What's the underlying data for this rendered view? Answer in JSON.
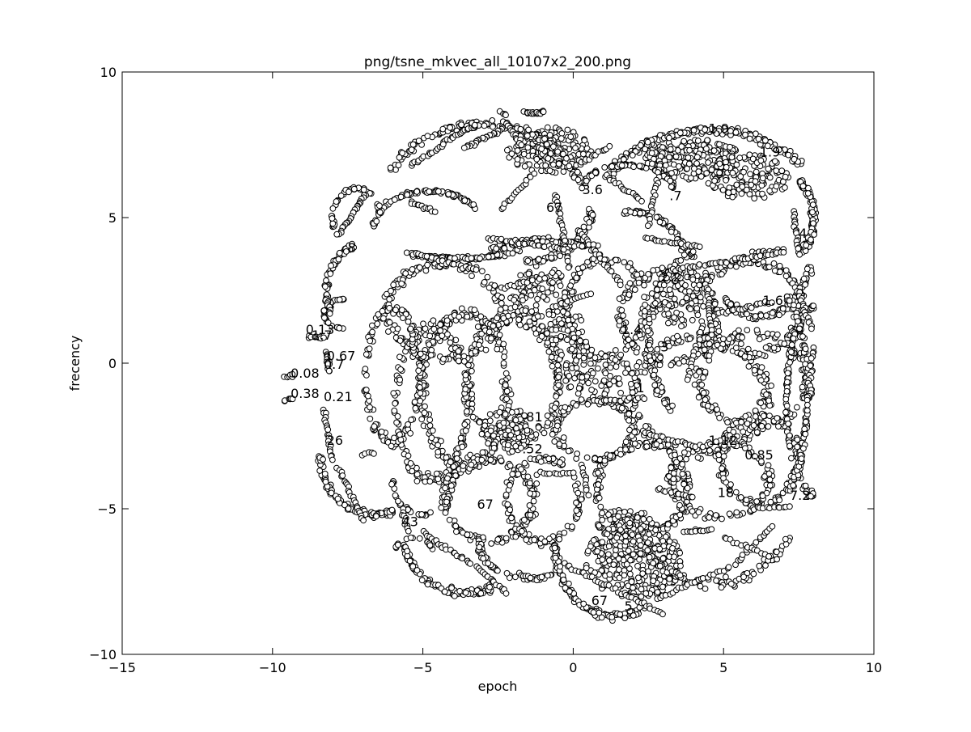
{
  "chart_data": {
    "type": "scatter",
    "title": "png/tsne_mkvec_all_10107x2_200.png",
    "xlabel": "epoch",
    "ylabel": "frecency",
    "xlim": [
      -15,
      10
    ],
    "ylim": [
      -10,
      10
    ],
    "grid": false,
    "legend": "none",
    "marker": {
      "shape": "circle",
      "fill": "#ffffff",
      "edge": "#000000"
    },
    "x_ticks": [
      -15,
      -10,
      -5,
      0,
      5,
      10
    ],
    "y_ticks": [
      -10,
      -5,
      0,
      5,
      10
    ],
    "x_tick_labels": [
      "−15",
      "−10",
      "−5",
      "0",
      "5",
      "10"
    ],
    "y_tick_labels": [
      "−10",
      "−5",
      "0",
      "5",
      "10"
    ],
    "annotations": [
      {
        "text": "1.9",
        "x": 4.5,
        "y": 7.9
      },
      {
        "text": "1.9",
        "x": 6.2,
        "y": 7.1
      },
      {
        "text": "3.6",
        "x": 0.3,
        "y": 5.8
      },
      {
        "text": ".7",
        "x": 3.2,
        "y": 5.6
      },
      {
        "text": "67",
        "x": -0.9,
        "y": 5.2
      },
      {
        "text": "4",
        "x": 7.5,
        "y": 4.3
      },
      {
        "text": "8",
        "x": -7.5,
        "y": 3.8
      },
      {
        "text": "2.2",
        "x": 2.9,
        "y": 2.8
      },
      {
        "text": "1.6",
        "x": 6.3,
        "y": 2.0
      },
      {
        "text": "1.4",
        "x": 1.6,
        "y": 1.0
      },
      {
        "text": "3",
        "x": 2.9,
        "y": 0.4
      },
      {
        "text": "0.13",
        "x": -8.9,
        "y": 1.0
      },
      {
        "text": "1.7",
        "x": -8.7,
        "y": 0.8
      },
      {
        "text": "0.67",
        "x": -8.2,
        "y": 0.1
      },
      {
        "text": "0.7",
        "x": -8.3,
        "y": -0.2
      },
      {
        "text": "0.08",
        "x": -9.4,
        "y": -0.5
      },
      {
        "text": "0.38",
        "x": -9.4,
        "y": -1.2
      },
      {
        "text": "0.21",
        "x": -8.3,
        "y": -1.3
      },
      {
        "text": "1",
        "x": 2.1,
        "y": -1.0
      },
      {
        "text": ".81",
        "x": -1.7,
        "y": -2.0
      },
      {
        "text": "1.12",
        "x": 4.5,
        "y": -2.8
      },
      {
        "text": "0.85",
        "x": 5.7,
        "y": -3.3
      },
      {
        "text": ".52",
        "x": -1.7,
        "y": -3.1
      },
      {
        "text": "18",
        "x": 4.8,
        "y": -4.6
      },
      {
        "text": "7.2",
        "x": 7.2,
        "y": -4.7
      },
      {
        "text": "26",
        "x": -8.2,
        "y": -2.8
      },
      {
        "text": "67",
        "x": -3.2,
        "y": -5.0
      },
      {
        "text": "43",
        "x": -5.7,
        "y": -5.6
      },
      {
        "text": "67",
        "x": 0.6,
        "y": -8.3
      },
      {
        "text": "5",
        "x": 1.7,
        "y": -8.5
      }
    ],
    "clusters": [
      {
        "shape": "ring",
        "cx": -3.6,
        "cy": -0.9,
        "rx": 1.4,
        "ry": 2.6,
        "n": 220
      },
      {
        "shape": "ring",
        "cx": -2.0,
        "cy": -0.6,
        "rx": 1.5,
        "ry": 2.2,
        "n": 200
      },
      {
        "shape": "ring",
        "cx": -4.3,
        "cy": 1.8,
        "rx": 1.9,
        "ry": 1.6,
        "n": 170
      },
      {
        "shape": "ring",
        "cx": -4.7,
        "cy": -1.4,
        "rx": 1.2,
        "ry": 2.6,
        "n": 170
      },
      {
        "shape": "ring",
        "cx": -2.8,
        "cy": -4.7,
        "rx": 1.5,
        "ry": 1.4,
        "n": 150
      },
      {
        "shape": "ring",
        "cx": -1.0,
        "cy": -4.7,
        "rx": 1.2,
        "ry": 1.4,
        "n": 120
      },
      {
        "shape": "ring",
        "cx": 4.2,
        "cy": -1.1,
        "rx": 2.2,
        "ry": 2.0,
        "n": 210
      },
      {
        "shape": "ring",
        "cx": 6.2,
        "cy": -3.3,
        "rx": 1.3,
        "ry": 1.5,
        "n": 140
      },
      {
        "shape": "ring",
        "cx": 4.9,
        "cy": -4.0,
        "rx": 1.6,
        "ry": 1.3,
        "n": 130
      },
      {
        "shape": "ring",
        "cx": 5.8,
        "cy": 1.9,
        "rx": 1.8,
        "ry": 1.6,
        "n": 170
      },
      {
        "shape": "ring",
        "cx": 6.0,
        "cy": -0.6,
        "rx": 1.8,
        "ry": 1.6,
        "n": 150
      },
      {
        "shape": "ring",
        "cx": 3.2,
        "cy": 1.6,
        "rx": 1.6,
        "ry": 1.6,
        "n": 160
      },
      {
        "shape": "ring",
        "cx": 1.1,
        "cy": 1.9,
        "rx": 1.3,
        "ry": 1.7,
        "n": 150
      },
      {
        "shape": "ring",
        "cx": 0.7,
        "cy": -2.3,
        "rx": 1.3,
        "ry": 1.0,
        "n": 110
      },
      {
        "shape": "ring",
        "cx": 2.3,
        "cy": -4.3,
        "rx": 1.5,
        "ry": 1.5,
        "n": 150
      },
      {
        "shape": "ring",
        "cx": -6.0,
        "cy": -0.4,
        "rx": 0.9,
        "ry": 2.3,
        "n": 140
      },
      {
        "shape": "blob",
        "cx": 2.0,
        "cy": -6.8,
        "rx": 1.6,
        "ry": 1.3,
        "n": 300
      },
      {
        "shape": "blob",
        "cx": 4.0,
        "cy": 7.0,
        "rx": 1.6,
        "ry": 0.7,
        "n": 190
      },
      {
        "shape": "blob",
        "cx": 5.8,
        "cy": 6.4,
        "rx": 1.4,
        "ry": 0.8,
        "n": 150
      },
      {
        "shape": "blob",
        "cx": -0.8,
        "cy": 7.3,
        "rx": 1.4,
        "ry": 0.8,
        "n": 170
      },
      {
        "shape": "blob",
        "cx": -1.1,
        "cy": 2.1,
        "rx": 1.0,
        "ry": 1.3,
        "n": 130
      },
      {
        "shape": "blob",
        "cx": -0.2,
        "cy": 0.8,
        "rx": 0.7,
        "ry": 1.0,
        "n": 70
      },
      {
        "shape": "blob",
        "cx": 3.5,
        "cy": 2.2,
        "rx": 0.9,
        "ry": 1.0,
        "n": 90
      },
      {
        "shape": "blob",
        "cx": -2.2,
        "cy": -2.3,
        "rx": 0.8,
        "ry": 0.8,
        "n": 80
      },
      {
        "shape": "blob",
        "cx": 0.9,
        "cy": -0.6,
        "rx": 1.2,
        "ry": 0.9,
        "n": 90
      },
      {
        "shape": "blob",
        "cx": 1.8,
        "cy": -5.6,
        "rx": 1.0,
        "ry": 0.6,
        "n": 80
      },
      {
        "shape": "arc",
        "cx": 1.4,
        "cy": -6.2,
        "rx": 2.0,
        "ry": 2.5,
        "a0": 180,
        "a1": 300,
        "n": 130
      },
      {
        "shape": "arc",
        "cx": 4.6,
        "cy": -4.2,
        "rx": 3.0,
        "ry": 3.4,
        "a0": 200,
        "a1": 330,
        "n": 120
      },
      {
        "shape": "arc",
        "cx": 6.0,
        "cy": 5.0,
        "rx": 2.0,
        "ry": 2.0,
        "a0": 320,
        "a1": 400,
        "n": 100
      },
      {
        "shape": "arc",
        "cx": 4.5,
        "cy": 5.5,
        "rx": 3.5,
        "ry": 2.5,
        "a0": 30,
        "a1": 160,
        "n": 180
      },
      {
        "shape": "arc",
        "cx": 6.2,
        "cy": 4.2,
        "rx": 1.8,
        "ry": 2.6,
        "a0": 230,
        "a1": 340,
        "n": 90
      },
      {
        "shape": "arc",
        "cx": 8.0,
        "cy": -1.3,
        "rx": 0.9,
        "ry": 3.2,
        "a0": 90,
        "a1": 270,
        "n": 110
      },
      {
        "shape": "arc",
        "cx": 6.4,
        "cy": -1.0,
        "rx": 1.4,
        "ry": 3.8,
        "a0": 300,
        "a1": 420,
        "n": 130
      },
      {
        "shape": "arc",
        "cx": 4.8,
        "cy": 0.8,
        "rx": 2.3,
        "ry": 3.2,
        "a0": 110,
        "a1": 230,
        "n": 90
      },
      {
        "shape": "arc",
        "cx": 1.8,
        "cy": 6.0,
        "rx": 1.5,
        "ry": 0.8,
        "a0": 0,
        "a1": 180,
        "n": 80
      },
      {
        "shape": "arc",
        "cx": -3.0,
        "cy": 5.8,
        "rx": 3.2,
        "ry": 2.4,
        "a0": 10,
        "a1": 160,
        "n": 170
      },
      {
        "shape": "arc",
        "cx": -4.8,
        "cy": 4.7,
        "rx": 1.8,
        "ry": 1.2,
        "a0": 30,
        "a1": 180,
        "n": 90
      },
      {
        "shape": "arc",
        "cx": -1.6,
        "cy": 5.3,
        "rx": 2.2,
        "ry": 1.8,
        "a0": 270,
        "a1": 360,
        "n": 80
      },
      {
        "shape": "arc",
        "cx": -3.8,
        "cy": 4.8,
        "rx": 3.2,
        "ry": 1.2,
        "a0": 240,
        "a1": 310,
        "n": 90
      },
      {
        "shape": "arc",
        "cx": -1.0,
        "cy": 2.0,
        "rx": 3.5,
        "ry": 2.2,
        "a0": 60,
        "a1": 120,
        "n": 100
      },
      {
        "shape": "arc",
        "cx": -7.2,
        "cy": 5.0,
        "rx": 0.8,
        "ry": 1.0,
        "a0": 20,
        "a1": 200,
        "n": 40
      },
      {
        "shape": "arc",
        "cx": -6.4,
        "cy": 2.5,
        "rx": 1.8,
        "ry": 1.8,
        "a0": 120,
        "a1": 200,
        "n": 60
      },
      {
        "shape": "arc",
        "cx": -6.6,
        "cy": -3.2,
        "rx": 1.8,
        "ry": 2.0,
        "a0": 180,
        "a1": 290,
        "n": 120
      },
      {
        "shape": "arc",
        "cx": -3.6,
        "cy": -5.4,
        "rx": 2.2,
        "ry": 2.5,
        "a0": 200,
        "a1": 300,
        "n": 100
      },
      {
        "shape": "arc",
        "cx": -5.0,
        "cy": -4.0,
        "rx": 1.0,
        "ry": 1.2,
        "a0": 180,
        "a1": 360,
        "n": 40
      },
      {
        "shape": "arc",
        "cx": -7.6,
        "cy": 1.7,
        "rx": 0.7,
        "ry": 0.5,
        "a0": 90,
        "a1": 270,
        "n": 30
      },
      {
        "shape": "arc",
        "cx": -5.3,
        "cy": -6.4,
        "rx": 0.6,
        "ry": 0.4,
        "a0": 0,
        "a1": 180,
        "n": 20
      },
      {
        "shape": "arc",
        "cx": -1.5,
        "cy": -6.2,
        "rx": 1.6,
        "ry": 1.2,
        "a0": 180,
        "a1": 300,
        "n": 60
      },
      {
        "shape": "arc",
        "cx": 2.0,
        "cy": 3.2,
        "rx": 1.8,
        "ry": 2.0,
        "a0": 20,
        "a1": 100,
        "n": 60
      },
      {
        "shape": "line",
        "x0": -1.6,
        "y0": 8.6,
        "x1": -1.0,
        "y1": 8.6,
        "n": 20
      },
      {
        "shape": "line",
        "x0": -2.4,
        "y0": 8.6,
        "x1": -2.2,
        "y1": 8.5,
        "n": 4
      },
      {
        "shape": "line",
        "x0": -2.2,
        "y0": 8.1,
        "x1": -3.6,
        "y1": 7.4,
        "n": 25
      },
      {
        "shape": "line",
        "x0": -4.3,
        "y0": 7.6,
        "x1": -3.2,
        "y1": 8.2,
        "n": 18
      },
      {
        "shape": "line",
        "x0": -5.4,
        "y0": 6.8,
        "x1": -4.3,
        "y1": 7.5,
        "n": 16
      },
      {
        "shape": "line",
        "x0": -2.3,
        "y0": 8.3,
        "x1": -1.7,
        "y1": 7.5,
        "n": 14
      },
      {
        "shape": "line",
        "x0": -6.9,
        "y0": 5.8,
        "x1": -7.8,
        "y1": 4.4,
        "n": 26
      },
      {
        "shape": "line",
        "x0": -8.2,
        "y0": 2.3,
        "x1": -8.1,
        "y1": 1.7,
        "n": 10
      },
      {
        "shape": "line",
        "x0": -8.8,
        "y0": 0.9,
        "x1": -8.3,
        "y1": 0.9,
        "n": 10
      },
      {
        "shape": "line",
        "x0": -8.2,
        "y0": 0.4,
        "x1": -8.1,
        "y1": -0.3,
        "n": 12
      },
      {
        "shape": "line",
        "x0": -9.6,
        "y0": -0.5,
        "x1": -9.3,
        "y1": -0.4,
        "n": 6
      },
      {
        "shape": "line",
        "x0": -9.6,
        "y0": -1.3,
        "x1": -9.3,
        "y1": -1.2,
        "n": 6
      },
      {
        "shape": "line",
        "x0": -8.3,
        "y0": -1.6,
        "x1": -8.0,
        "y1": -3.3,
        "n": 20
      },
      {
        "shape": "line",
        "x0": -7.8,
        "y0": -3.6,
        "x1": -7.0,
        "y1": -5.4,
        "n": 22
      },
      {
        "shape": "line",
        "x0": -7.0,
        "y0": -3.1,
        "x1": -6.6,
        "y1": -3.1,
        "n": 5
      },
      {
        "shape": "line",
        "x0": -5.7,
        "y0": -5.0,
        "x1": -5.5,
        "y1": -5.8,
        "n": 10
      },
      {
        "shape": "line",
        "x0": -5.0,
        "y0": -5.8,
        "x1": -3.4,
        "y1": -6.9,
        "n": 22
      },
      {
        "shape": "line",
        "x0": -3.2,
        "y0": -7.0,
        "x1": -2.2,
        "y1": -7.9,
        "n": 16
      },
      {
        "shape": "line",
        "x0": -1.8,
        "y0": -7.2,
        "x1": -1.4,
        "y1": -7.4,
        "n": 6
      },
      {
        "shape": "line",
        "x0": -0.3,
        "y0": -6.9,
        "x1": 3.0,
        "y1": -8.6,
        "n": 36
      },
      {
        "shape": "line",
        "x0": 2.8,
        "y0": -8.1,
        "x1": 5.2,
        "y1": -7.0,
        "n": 24
      },
      {
        "shape": "line",
        "x0": 5.4,
        "y0": -6.9,
        "x1": 6.6,
        "y1": -5.6,
        "n": 18
      },
      {
        "shape": "line",
        "x0": 7.2,
        "y0": -4.4,
        "x1": 7.6,
        "y1": -3.3,
        "n": 10
      },
      {
        "shape": "line",
        "x0": 8.0,
        "y0": 0.5,
        "x1": 7.8,
        "y1": -1.4,
        "n": 20
      },
      {
        "shape": "line",
        "x0": 7.5,
        "y0": 2.5,
        "x1": 7.9,
        "y1": 1.2,
        "n": 16
      },
      {
        "shape": "line",
        "x0": 7.3,
        "y0": 5.2,
        "x1": 7.5,
        "y1": 3.9,
        "n": 16
      },
      {
        "shape": "line",
        "x0": 6.0,
        "y0": 3.8,
        "x1": 7.0,
        "y1": 3.9,
        "n": 12
      },
      {
        "shape": "line",
        "x0": 0.1,
        "y0": 6.8,
        "x1": 1.2,
        "y1": 7.4,
        "n": 14
      },
      {
        "shape": "line",
        "x0": -0.6,
        "y0": 5.8,
        "x1": -0.1,
        "y1": 3.3,
        "n": 26
      },
      {
        "shape": "line",
        "x0": 0.2,
        "y0": 4.6,
        "x1": 1.6,
        "y1": 2.7,
        "n": 24
      },
      {
        "shape": "line",
        "x0": 1.1,
        "y0": 6.4,
        "x1": 2.3,
        "y1": 5.6,
        "n": 16
      },
      {
        "shape": "line",
        "x0": 3.0,
        "y0": 7.4,
        "x1": 2.5,
        "y1": 4.7,
        "n": 26
      },
      {
        "shape": "line",
        "x0": 2.4,
        "y0": 4.3,
        "x1": 4.2,
        "y1": 4.0,
        "n": 20
      },
      {
        "shape": "line",
        "x0": 3.2,
        "y0": 3.2,
        "x1": 7.0,
        "y1": 3.8,
        "n": 40
      },
      {
        "shape": "line",
        "x0": 4.4,
        "y0": 3.1,
        "x1": 4.6,
        "y1": 1.0,
        "n": 22
      },
      {
        "shape": "line",
        "x0": 4.3,
        "y0": 1.4,
        "x1": 3.8,
        "y1": -0.6,
        "n": 18
      },
      {
        "shape": "line",
        "x0": 4.9,
        "y0": 1.7,
        "x1": 6.6,
        "y1": 2.1,
        "n": 20
      },
      {
        "shape": "line",
        "x0": -5.5,
        "y0": 3.8,
        "x1": -3.2,
        "y1": 3.2,
        "n": 26
      },
      {
        "shape": "line",
        "x0": -2.8,
        "y0": 4.3,
        "x1": -0.3,
        "y1": 3.9,
        "n": 30
      },
      {
        "shape": "line",
        "x0": -5.4,
        "y0": 5.5,
        "x1": -4.6,
        "y1": 5.2,
        "n": 12
      },
      {
        "shape": "line",
        "x0": -2.4,
        "y0": 5.3,
        "x1": -1.3,
        "y1": 6.5,
        "n": 16
      },
      {
        "shape": "line",
        "x0": -2.4,
        "y0": 2.6,
        "x1": -1.0,
        "y1": 2.9,
        "n": 14
      },
      {
        "shape": "line",
        "x0": -0.6,
        "y0": 2.0,
        "x1": 0.6,
        "y1": 2.4,
        "n": 12
      },
      {
        "shape": "line",
        "x0": 0.7,
        "y0": -1.3,
        "x1": 2.4,
        "y1": -1.2,
        "n": 18
      },
      {
        "shape": "line",
        "x0": 2.4,
        "y0": -2.4,
        "x1": 4.3,
        "y1": -2.9,
        "n": 20
      },
      {
        "shape": "line",
        "x0": 2.8,
        "y0": -4.3,
        "x1": 4.0,
        "y1": -4.6,
        "n": 14
      },
      {
        "shape": "line",
        "x0": 3.7,
        "y0": -5.8,
        "x1": 4.6,
        "y1": -5.7,
        "n": 12
      },
      {
        "shape": "line",
        "x0": 5.0,
        "y0": -6.0,
        "x1": 6.5,
        "y1": -6.6,
        "n": 14
      },
      {
        "shape": "line",
        "x0": 6.0,
        "y0": -5.0,
        "x1": 7.2,
        "y1": -4.9,
        "n": 12
      },
      {
        "shape": "line",
        "x0": -1.2,
        "y0": -3.8,
        "x1": 0.0,
        "y1": -3.8,
        "n": 12
      },
      {
        "shape": "line",
        "x0": 0.3,
        "y0": -3.5,
        "x1": 0.5,
        "y1": -4.5,
        "n": 10
      },
      {
        "shape": "line",
        "x0": -0.5,
        "y0": -2.8,
        "x1": -0.3,
        "y1": -2.6,
        "n": 4
      },
      {
        "shape": "line",
        "x0": -5.3,
        "y0": 0.2,
        "x1": -5.4,
        "y1": 1.2,
        "n": 10
      }
    ]
  }
}
